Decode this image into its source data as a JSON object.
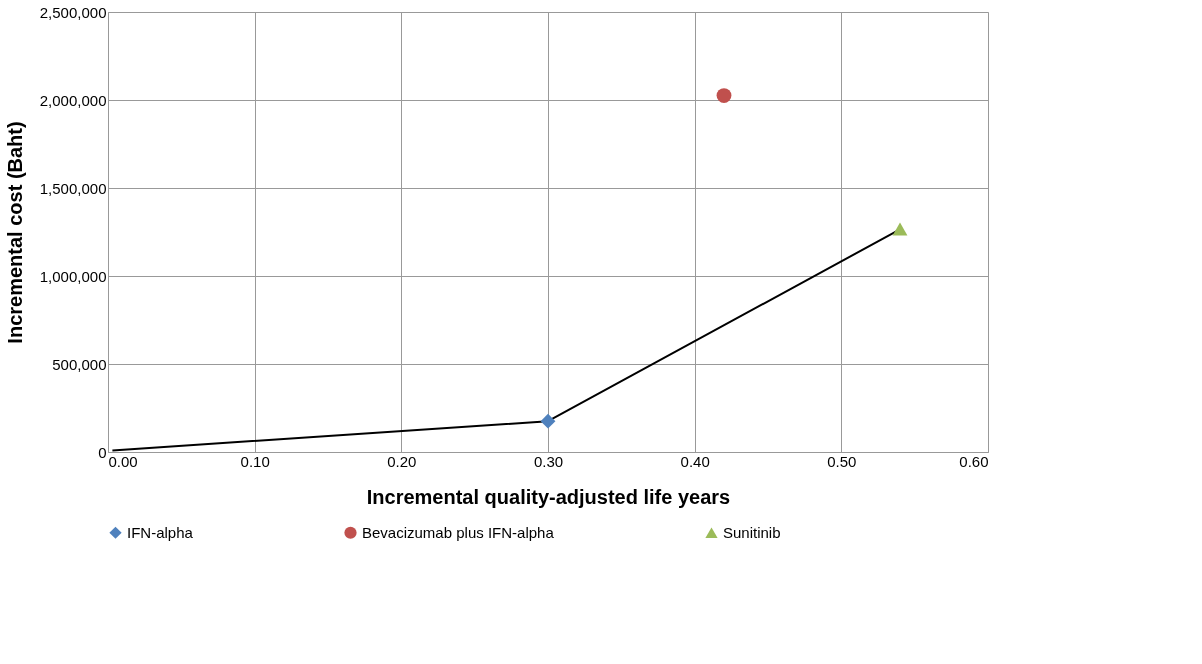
{
  "chart_data": {
    "type": "scatter",
    "xlabel": "Incremental quality-adjusted life years",
    "ylabel": "Incremental cost (Baht)",
    "series": [
      {
        "type": "line",
        "color": "#000000",
        "x": [
          0.003,
          0.3,
          0.54
        ],
        "values": [
          9000,
          175000,
          1265000
        ],
        "marker": "none"
      },
      {
        "name": "IFN-alpha",
        "color": "#4f81bd",
        "x": [
          0.3
        ],
        "values": [
          175000
        ],
        "marker": "diamond"
      },
      {
        "name": "Bevacizumab plus IFN-alpha",
        "color": "#c0504d",
        "x": [
          0.42
        ],
        "values": [
          2025000
        ],
        "marker": "circle"
      },
      {
        "name": "Sunitinib",
        "color": "#9bbb59",
        "x": [
          0.54
        ],
        "values": [
          1267000
        ],
        "marker": "triangle"
      }
    ],
    "xlim": [
      0,
      0.6
    ],
    "xticks": [
      {
        "value": 0,
        "label": "0.00"
      },
      {
        "value": 0.1,
        "label": "0.10"
      },
      {
        "value": 0.2,
        "label": "0.20"
      },
      {
        "value": 0.3,
        "label": "0.30"
      },
      {
        "value": 0.4,
        "label": "0.40"
      },
      {
        "value": 0.5,
        "label": "0.50"
      },
      {
        "value": 0.6,
        "label": "0.60"
      }
    ],
    "ylim": [
      0,
      2500000
    ],
    "yticks": [
      0,
      {
        "value": 500000,
        "label": "500,000"
      },
      {
        "value": 1000000,
        "label": "1,000,000"
      },
      {
        "value": 1500000,
        "label": "1,500,000"
      },
      {
        "value": 2000000,
        "label": "2,000,000"
      },
      {
        "value": 2500000,
        "label": "2,500,000"
      }
    ],
    "grid": true,
    "legend": "bottom"
  }
}
